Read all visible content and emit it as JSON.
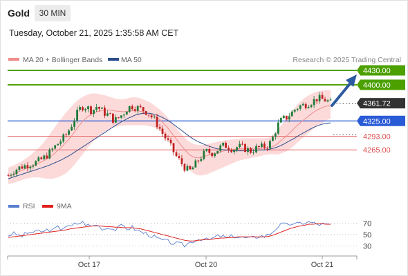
{
  "header": {
    "title": "Gold",
    "timeframe": "30 MIN"
  },
  "datetime": "Tuesday, October 21, 2025 1:35:58 AM CET",
  "legend": {
    "ma20": {
      "label": "MA 20 + Bollinger Bands",
      "color": "#f08c8c"
    },
    "ma50": {
      "label": "MA 50",
      "color": "#2c4f8c"
    }
  },
  "copyright": "Research © 2025 Trading Central",
  "levels": [
    {
      "label": "4430.00",
      "value": 4430,
      "type": "target"
    },
    {
      "label": "4400.00",
      "value": 4400,
      "type": "target"
    },
    {
      "label": "4361.72",
      "value": 4361.72,
      "type": "current"
    },
    {
      "label": "4325.00",
      "value": 4325,
      "type": "pivot"
    },
    {
      "label": "4293.00",
      "value": 4293,
      "type": "support"
    },
    {
      "label": "4265.00",
      "value": 4265,
      "type": "support"
    }
  ],
  "colors": {
    "target": "#4ca000",
    "current": "#333333",
    "pivot": "#2a5bd7",
    "support": "#e05050",
    "candle_up": "#1f7a3a",
    "candle_down": "#c02020",
    "band": "#fbd3d3",
    "arrow": "#2c5aa0"
  },
  "rsi_legend": {
    "rsi": {
      "label": "RSI",
      "color": "#5a7fd0"
    },
    "ma9": {
      "label": "9MA",
      "color": "#e02020"
    }
  },
  "rsi_ticks": [
    {
      "label": "70",
      "value": 70
    },
    {
      "label": "50",
      "value": 50
    },
    {
      "label": "30",
      "value": 30
    }
  ],
  "x_labels": [
    "Oct 17",
    "Oct 20",
    "Oct 21"
  ],
  "chart_data": [
    {
      "type": "candlestick",
      "title": "Gold",
      "ylim": [
        4175,
        4440
      ],
      "x_ticks": [
        "Oct 17",
        "Oct 20",
        "Oct 21"
      ],
      "price_close_path": [
        4212,
        4220,
        4226,
        4230,
        4233,
        4236,
        4238,
        4242,
        4248,
        4256,
        4266,
        4276,
        4285,
        4295,
        4310,
        4330,
        4348,
        4356,
        4352,
        4346,
        4355,
        4348,
        4340,
        4336,
        4325,
        4332,
        4340,
        4352,
        4356,
        4353,
        4350,
        4346,
        4338,
        4328,
        4314,
        4298,
        4284,
        4268,
        4252,
        4240,
        4228,
        4220,
        4230,
        4243,
        4254,
        4262,
        4258,
        4262,
        4270,
        4275,
        4270,
        4266,
        4272,
        4270,
        4266,
        4262,
        4268,
        4270,
        4272,
        4275,
        4292,
        4316,
        4328,
        4332,
        4340,
        4350,
        4356,
        4358,
        4362,
        4366,
        4372,
        4370,
        4368,
        4362
      ],
      "ma20_path": [
        4210,
        4214,
        4218,
        4222,
        4226,
        4230,
        4234,
        4238,
        4242,
        4248,
        4254,
        4262,
        4270,
        4280,
        4290,
        4302,
        4315,
        4326,
        4334,
        4340,
        4344,
        4346,
        4348,
        4348,
        4346,
        4345,
        4344,
        4345,
        4346,
        4346,
        4345,
        4343,
        4340,
        4336,
        4330,
        4322,
        4312,
        4300,
        4288,
        4276,
        4265,
        4255,
        4250,
        4248,
        4250,
        4253,
        4256,
        4258,
        4261,
        4263,
        4265,
        4266,
        4267,
        4268,
        4268,
        4268,
        4268,
        4268,
        4268,
        4269,
        4272,
        4278,
        4286,
        4294,
        4302,
        4312,
        4320,
        4328,
        4335,
        4342,
        4348,
        4352,
        4356,
        4356
      ],
      "ma50_path": [
        4205,
        4208,
        4211,
        4214,
        4217,
        4220,
        4223,
        4226,
        4229,
        4232,
        4236,
        4240,
        4244,
        4249,
        4254,
        4260,
        4266,
        4272,
        4278,
        4284,
        4290,
        4296,
        4302,
        4308,
        4314,
        4320,
        4325,
        4330,
        4334,
        4338,
        4340,
        4341,
        4341,
        4339,
        4336,
        4332,
        4327,
        4321,
        4314,
        4307,
        4300,
        4293,
        4287,
        4282,
        4278,
        4274,
        4271,
        4268,
        4266,
        4265,
        4264,
        4263,
        4263,
        4263,
        4263,
        4264,
        4264,
        4265,
        4265,
        4266,
        4268,
        4271,
        4275,
        4280,
        4285,
        4290,
        4296,
        4301,
        4306,
        4311,
        4315,
        4318,
        4320,
        4321
      ],
      "band_upper_path": [
        4228,
        4232,
        4236,
        4241,
        4247,
        4254,
        4262,
        4270,
        4280,
        4292,
        4305,
        4318,
        4330,
        4342,
        4352,
        4362,
        4370,
        4376,
        4380,
        4382,
        4382,
        4380,
        4378,
        4375,
        4372,
        4370,
        4370,
        4372,
        4374,
        4374,
        4372,
        4368,
        4364,
        4358,
        4351,
        4343,
        4333,
        4322,
        4311,
        4300,
        4290,
        4282,
        4277,
        4275,
        4275,
        4277,
        4279,
        4281,
        4283,
        4285,
        4286,
        4287,
        4288,
        4289,
        4289,
        4289,
        4289,
        4289,
        4289,
        4290,
        4296,
        4306,
        4318,
        4330,
        4342,
        4354,
        4364,
        4372,
        4378,
        4383,
        4386,
        4388,
        4389,
        4389
      ],
      "band_lower_path": [
        4194,
        4196,
        4199,
        4202,
        4205,
        4207,
        4208,
        4208,
        4206,
        4205,
        4205,
        4207,
        4211,
        4216,
        4224,
        4234,
        4246,
        4258,
        4270,
        4280,
        4290,
        4298,
        4304,
        4309,
        4312,
        4314,
        4315,
        4316,
        4316,
        4316,
        4316,
        4316,
        4314,
        4312,
        4308,
        4300,
        4290,
        4278,
        4264,
        4250,
        4236,
        4224,
        4216,
        4212,
        4212,
        4214,
        4218,
        4222,
        4226,
        4230,
        4234,
        4238,
        4242,
        4244,
        4246,
        4248,
        4250,
        4252,
        4254,
        4256,
        4256,
        4255,
        4258,
        4262,
        4268,
        4276,
        4284,
        4292,
        4300,
        4308,
        4314,
        4320,
        4326,
        4330
      ],
      "rsi_path": [
        49,
        52,
        50,
        47,
        51,
        55,
        53,
        57,
        54,
        60,
        56,
        63,
        60,
        66,
        62,
        68,
        70,
        72,
        66,
        64,
        68,
        62,
        60,
        64,
        58,
        62,
        66,
        60,
        63,
        58,
        55,
        52,
        50,
        46,
        42,
        40,
        38,
        36,
        34,
        33,
        31,
        36,
        40,
        42,
        44,
        40,
        42,
        46,
        48,
        45,
        44,
        48,
        46,
        45,
        44,
        43,
        46,
        48,
        47,
        50,
        56,
        64,
        68,
        66,
        70,
        67,
        69,
        71,
        72,
        70,
        68,
        68,
        67,
        66
      ],
      "rsi_ma9_path": [
        45,
        46,
        47,
        48,
        49,
        50,
        51,
        52,
        53,
        54,
        55,
        56,
        57,
        58,
        60,
        61,
        62,
        63,
        64,
        65,
        65,
        65,
        64,
        64,
        63,
        63,
        62,
        62,
        62,
        61,
        60,
        58,
        56,
        54,
        52,
        50,
        48,
        46,
        44,
        42,
        40,
        39,
        39,
        40,
        41,
        41,
        42,
        43,
        44,
        44,
        45,
        45,
        46,
        46,
        46,
        46,
        46,
        46,
        46,
        47,
        49,
        52,
        55,
        58,
        61,
        63,
        65,
        66,
        68,
        68,
        69,
        69,
        68,
        68
      ],
      "rsi_ylim": [
        20,
        80
      ],
      "annotations": [
        "4430.00",
        "4400.00",
        "4361.72",
        "4325.00",
        "4293.00",
        "4265.00"
      ]
    }
  ]
}
